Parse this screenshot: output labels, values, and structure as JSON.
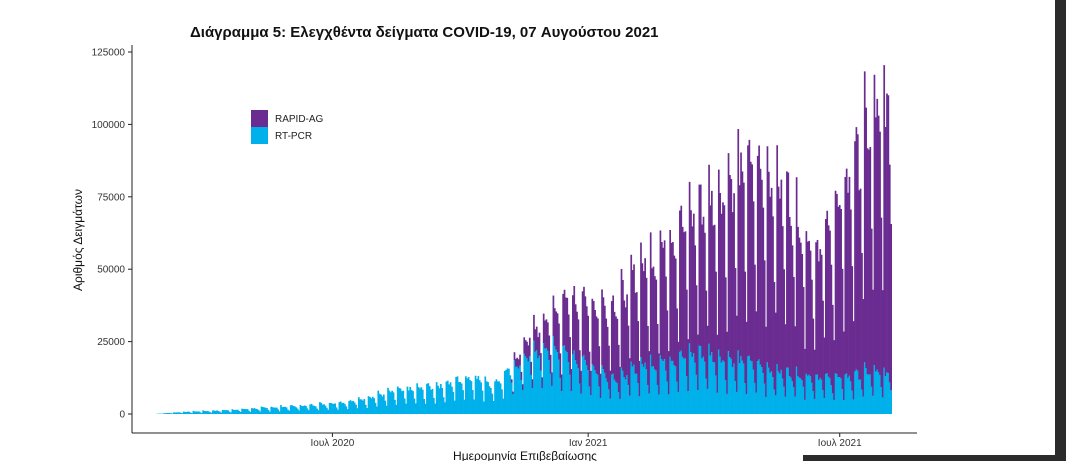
{
  "chart_data": {
    "type": "bar",
    "title": "Διάγραμμα 5: Ελεγχθέντα δείγματα COVID-19, 07 Αυγούστου 2021",
    "xlabel": "Ημερομηνία Επιβεβαίωσης",
    "ylabel": "Αριθμός Δειγμάτων",
    "ylim": [
      0,
      125000
    ],
    "yticks": [
      0,
      25000,
      50000,
      75000,
      100000,
      125000
    ],
    "xticks": [
      {
        "date": "2020-07-01",
        "label": "Ιουλ 2020"
      },
      {
        "date": "2021-01-01",
        "label": "Ιαν 2021"
      },
      {
        "date": "2021-07-01",
        "label": "Ιουλ 2021"
      }
    ],
    "x_range": [
      "2020-02-15",
      "2021-08-22"
    ],
    "stacked": true,
    "grid": false,
    "legend_position": "top-left",
    "series": [
      {
        "name": "RAPID-AG",
        "color": "#6a2c91",
        "start": "2020-11-07",
        "approx_weekly_peak": [
          [
            "2020-11-07",
            2000
          ],
          [
            "2020-11-21",
            8000
          ],
          [
            "2020-12-05",
            12000
          ],
          [
            "2020-12-19",
            22000
          ],
          [
            "2021-01-09",
            25000
          ],
          [
            "2021-01-23",
            30000
          ],
          [
            "2021-02-06",
            38000
          ],
          [
            "2021-02-20",
            42000
          ],
          [
            "2021-03-06",
            50000
          ],
          [
            "2021-03-20",
            55000
          ],
          [
            "2021-04-03",
            62000
          ],
          [
            "2021-04-17",
            72000
          ],
          [
            "2021-05-01",
            76000
          ],
          [
            "2021-05-15",
            75000
          ],
          [
            "2021-05-29",
            66000
          ],
          [
            "2021-06-12",
            48000
          ],
          [
            "2021-06-26",
            60000
          ],
          [
            "2021-07-10",
            80000
          ],
          [
            "2021-07-24",
            98000
          ],
          [
            "2021-08-07",
            105000
          ]
        ]
      },
      {
        "name": "RT-PCR",
        "color": "#00b0ea",
        "start": "2020-02-26",
        "approx_weekly_peak": [
          [
            "2020-02-26",
            100
          ],
          [
            "2020-03-15",
            800
          ],
          [
            "2020-04-15",
            1500
          ],
          [
            "2020-05-15",
            2500
          ],
          [
            "2020-06-15",
            3500
          ],
          [
            "2020-07-15",
            5000
          ],
          [
            "2020-08-15",
            9000
          ],
          [
            "2020-09-15",
            11000
          ],
          [
            "2020-10-10",
            15000
          ],
          [
            "2020-10-25",
            12000
          ],
          [
            "2020-11-07",
            18000
          ],
          [
            "2020-11-21",
            24000
          ],
          [
            "2020-12-05",
            26000
          ],
          [
            "2020-12-19",
            23000
          ],
          [
            "2021-01-09",
            17000
          ],
          [
            "2021-01-23",
            14000
          ],
          [
            "2021-02-06",
            19000
          ],
          [
            "2021-02-20",
            20000
          ],
          [
            "2021-03-06",
            22000
          ],
          [
            "2021-03-20",
            24000
          ],
          [
            "2021-04-03",
            23000
          ],
          [
            "2021-04-17",
            21000
          ],
          [
            "2021-05-01",
            20000
          ],
          [
            "2021-05-15",
            17000
          ],
          [
            "2021-05-29",
            16000
          ],
          [
            "2021-06-12",
            15000
          ],
          [
            "2021-06-26",
            14000
          ],
          [
            "2021-07-10",
            15000
          ],
          [
            "2021-07-24",
            17000
          ],
          [
            "2021-08-07",
            15000
          ]
        ]
      }
    ]
  }
}
